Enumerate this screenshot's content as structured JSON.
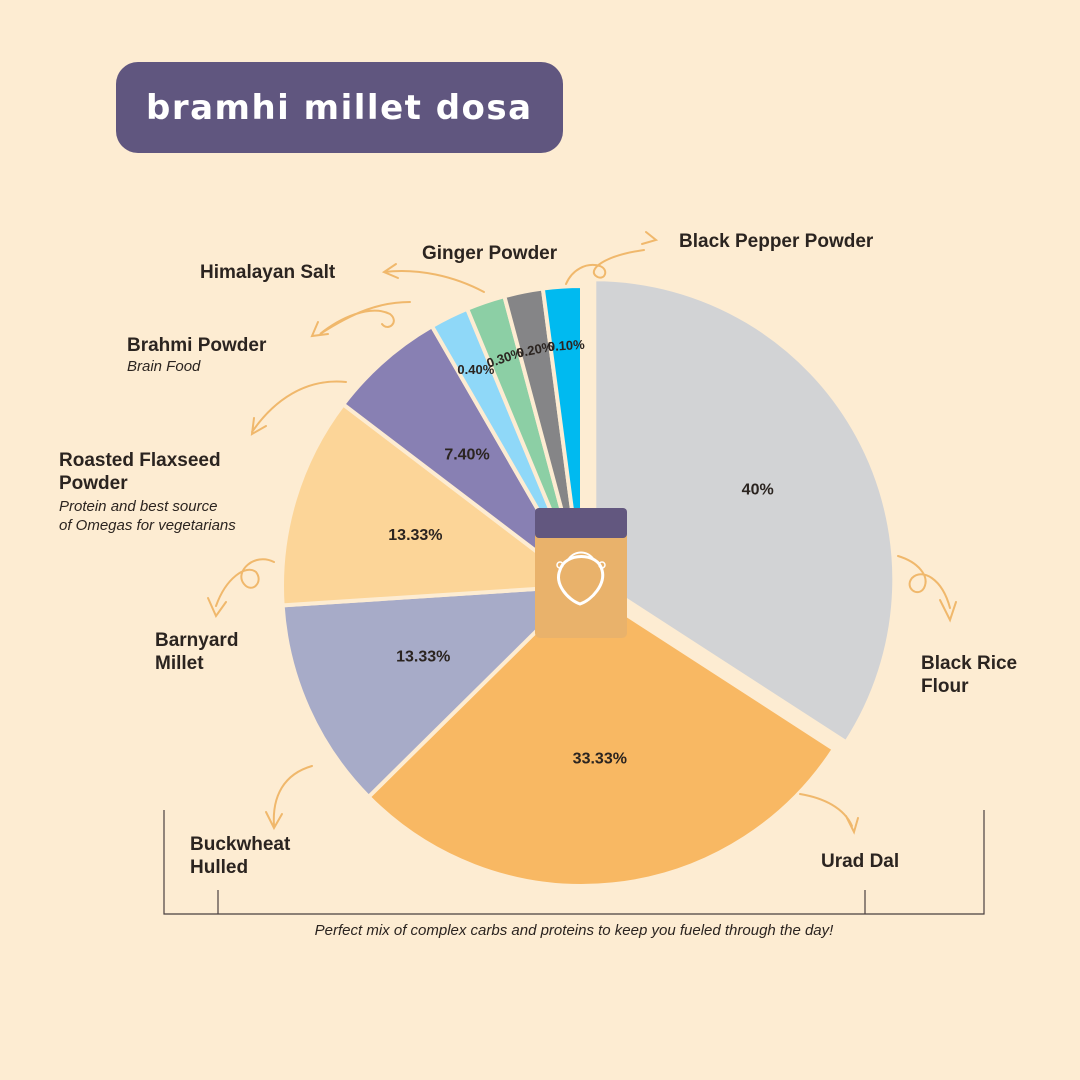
{
  "title": "bramhi millet dosa",
  "footnote": "Perfect mix of complex carbs and proteins to keep you fueled through the day!",
  "chart_data": {
    "type": "pie",
    "title": "bramhi millet dosa",
    "slices": [
      {
        "name": "Black Rice\nFlour",
        "value": 40,
        "label": "40%",
        "color": "#d2d3d5"
      },
      {
        "name": "Urad Dal",
        "value": 33.33,
        "label": "33.33%",
        "color": "#f8b863"
      },
      {
        "name": "Buckwheat\nHulled",
        "value": 13.33,
        "label": "13.33%",
        "color": "#a7abc8"
      },
      {
        "name": "Barnyard\nMillet",
        "value": 13.33,
        "label": "13.33%",
        "color": "#fcd598"
      },
      {
        "name": "Roasted Flaxseed\nPowder",
        "value": 7.4,
        "label": "7.40%",
        "color": "#8880b3",
        "note": "Protein and best source\nof Omegas for vegetarians"
      },
      {
        "name": "Brahmi Powder",
        "value": 0.4,
        "label": "0.40%",
        "color": "#8fd8f8",
        "note": "Brain Food"
      },
      {
        "name": "Himalayan Salt",
        "value": 0.3,
        "label": "0.30%",
        "color": "#8ccfa5"
      },
      {
        "name": "Ginger Powder",
        "value": 0.2,
        "label": "0.20%",
        "color": "#858587"
      },
      {
        "name": "Black Pepper Powder",
        "value": 0.1,
        "label": "0.10%",
        "color": "#00baf0"
      }
    ],
    "legend": "callout labels around pie"
  }
}
